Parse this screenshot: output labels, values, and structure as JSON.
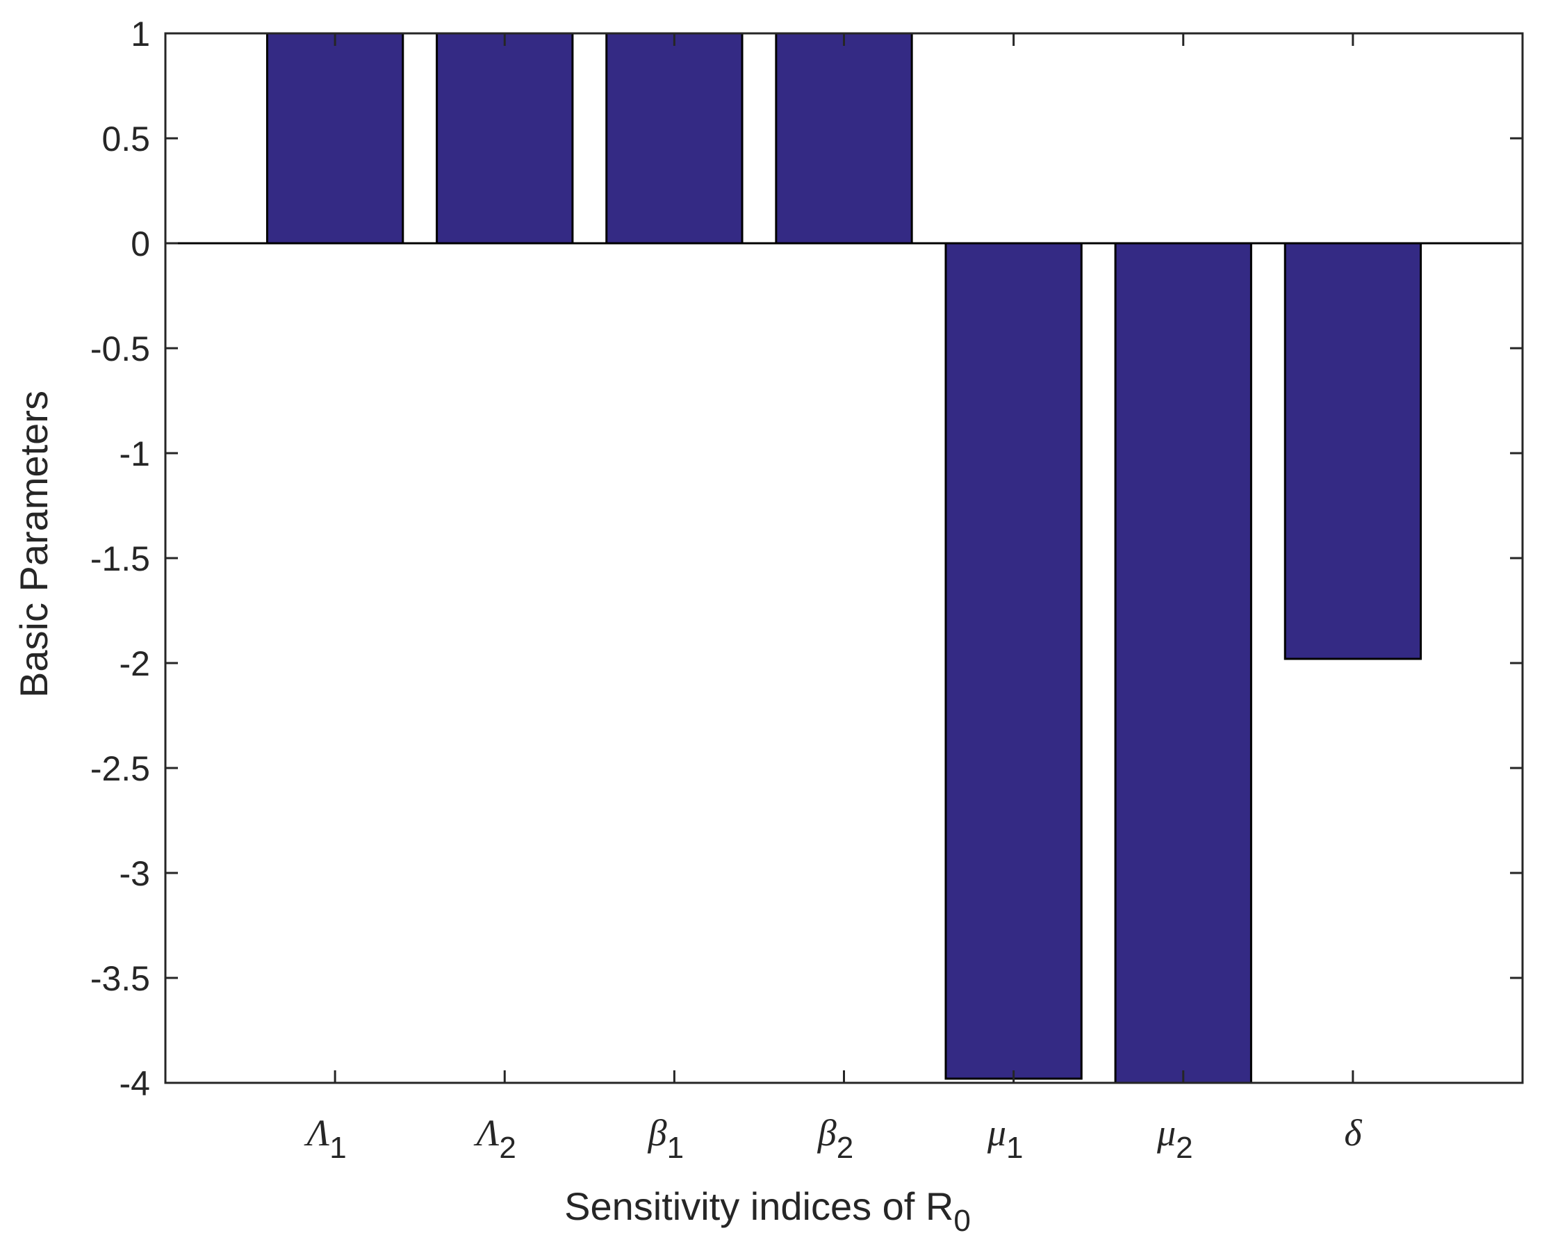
{
  "chart_data": {
    "type": "bar",
    "title": "",
    "xlabel": "Sensitivity indices of R",
    "xlabel_subscript": "0",
    "ylabel": "Basic Parameters",
    "categories": [
      {
        "symbol": "Λ",
        "subscript": "1"
      },
      {
        "symbol": "Λ",
        "subscript": "2"
      },
      {
        "symbol": "β",
        "subscript": "1"
      },
      {
        "symbol": "β",
        "subscript": "2"
      },
      {
        "symbol": "μ",
        "subscript": "1"
      },
      {
        "symbol": "μ",
        "subscript": "2"
      },
      {
        "symbol": "δ",
        "subscript": ""
      }
    ],
    "values": [
      1,
      1,
      1,
      1,
      -3.98,
      -4.0,
      -1.98
    ],
    "ylim": [
      -4,
      1
    ],
    "yticks": [
      "1",
      "0.5",
      "0",
      "-0.5",
      "-1",
      "-1.5",
      "-2",
      "-2.5",
      "-3",
      "-3.5",
      "-4"
    ],
    "grid": false,
    "legend": "none",
    "bar_color": "#342a84",
    "bar_edge_color": "#000000"
  }
}
